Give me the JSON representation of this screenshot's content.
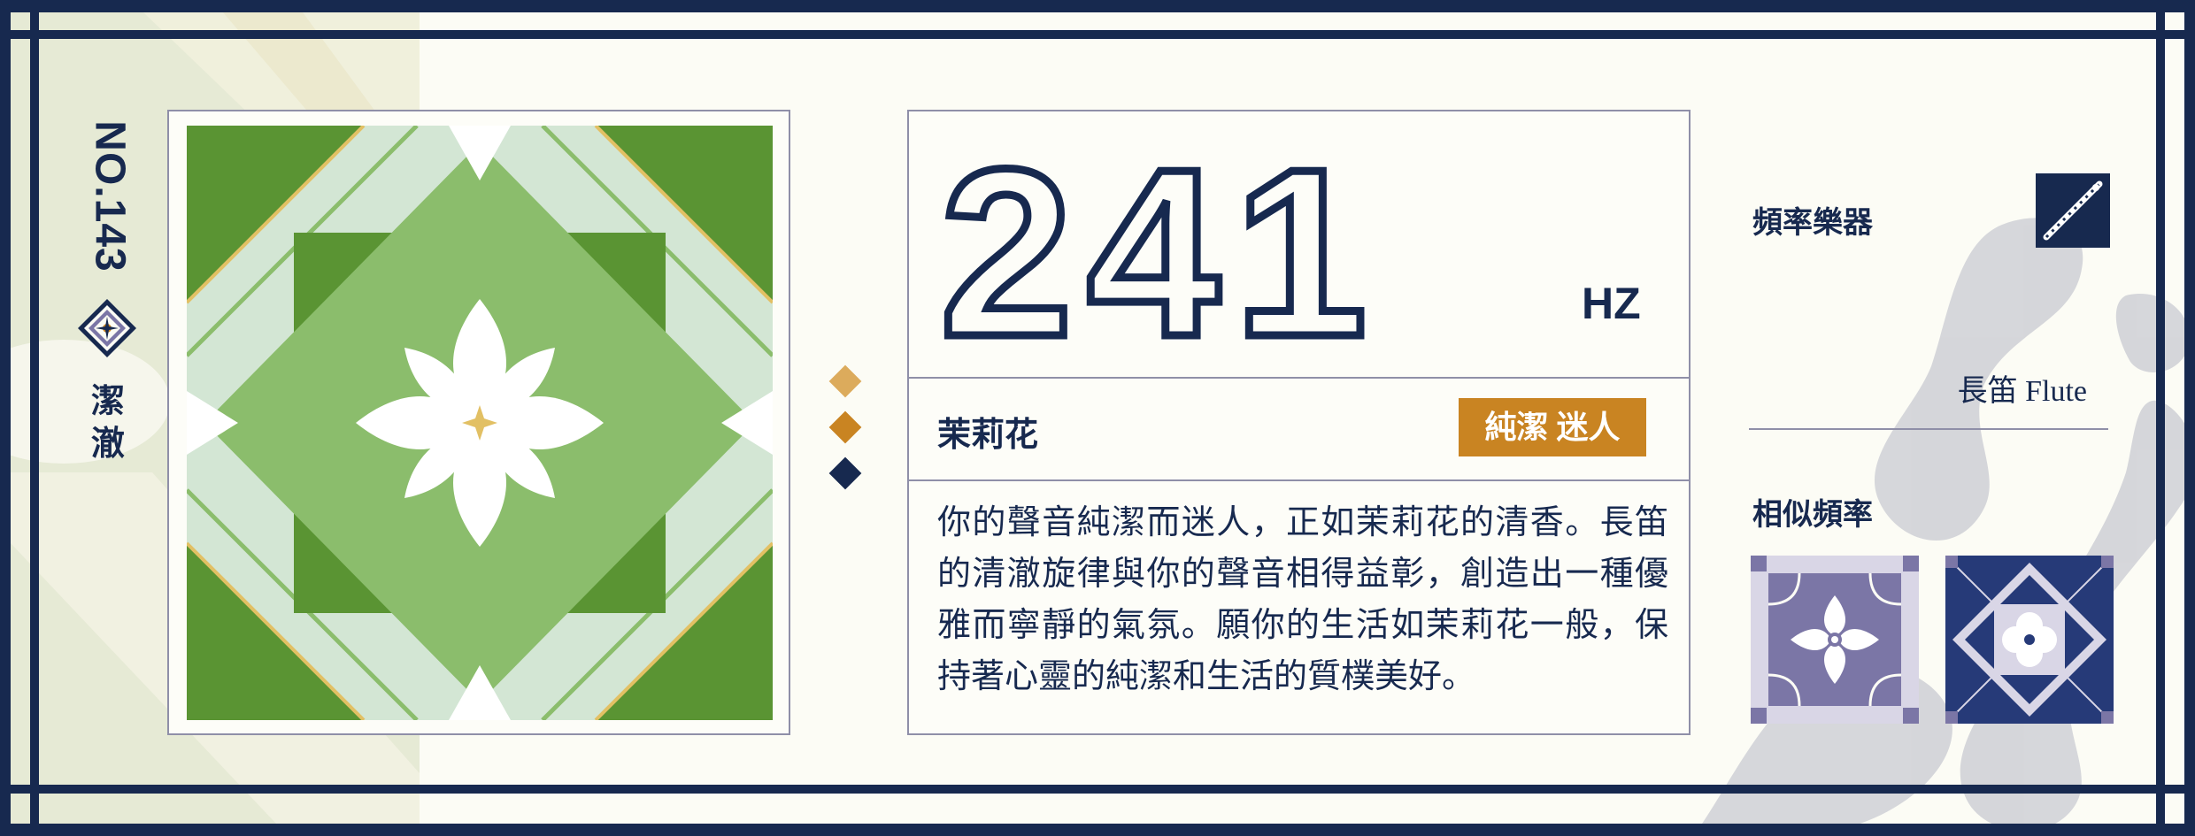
{
  "card": {
    "serial": "NO.143",
    "virtue": "潔澈",
    "frequency": "241",
    "unit": "HZ",
    "flower": "茉莉花",
    "keywords": "純潔 迷人",
    "description": "你的聲音純潔而迷人，正如茉莉花的清香。長笛的清澈旋律與你的聲音相得益彰，創造出一種優雅而寧靜的氣氛。願你的生活如茉莉花一般，保持著心靈的純潔和生活的質樸美好。"
  },
  "instrument": {
    "title": "頻率樂器",
    "name": "長笛 Flute",
    "icon": "flute-icon"
  },
  "similar": {
    "title": "相似頻率",
    "tiles": [
      {
        "icon": "lavender-tile-icon",
        "color": "#7b76a6"
      },
      {
        "icon": "navy-tile-icon",
        "color": "#263a78"
      }
    ]
  },
  "colors": {
    "navy": "#17294f",
    "paper": "#fcfcf5",
    "badge": "#c98422",
    "tile_green_dark": "#5a9433",
    "tile_green_mid": "#8bbd6c",
    "tile_green_pale": "#d3e6d4",
    "gold": "#e2c064",
    "dot_light": "#dcab5c",
    "dot_mid": "#c98422",
    "dot_dark": "#17294f"
  }
}
